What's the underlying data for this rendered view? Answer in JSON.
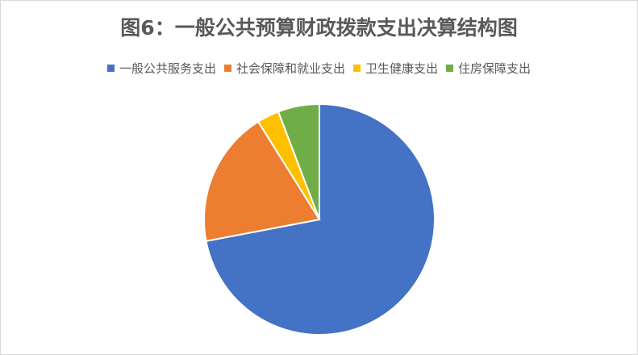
{
  "chart_data": {
    "type": "pie",
    "title": "图6：一般公共预算财政拨款支出决算结构图",
    "legend_position": "top",
    "start_angle": "12 o'clock, clockwise",
    "categories": [
      "一般公共服务支出",
      "社会保障和就业支出",
      "卫生健康支出",
      "住房保障支出"
    ],
    "values": [
      72.0,
      19.1,
      3.1,
      5.8
    ],
    "unit": "percent (estimated)",
    "colors": [
      "#4472c4",
      "#ed7d31",
      "#ffc000",
      "#70ad47"
    ]
  }
}
